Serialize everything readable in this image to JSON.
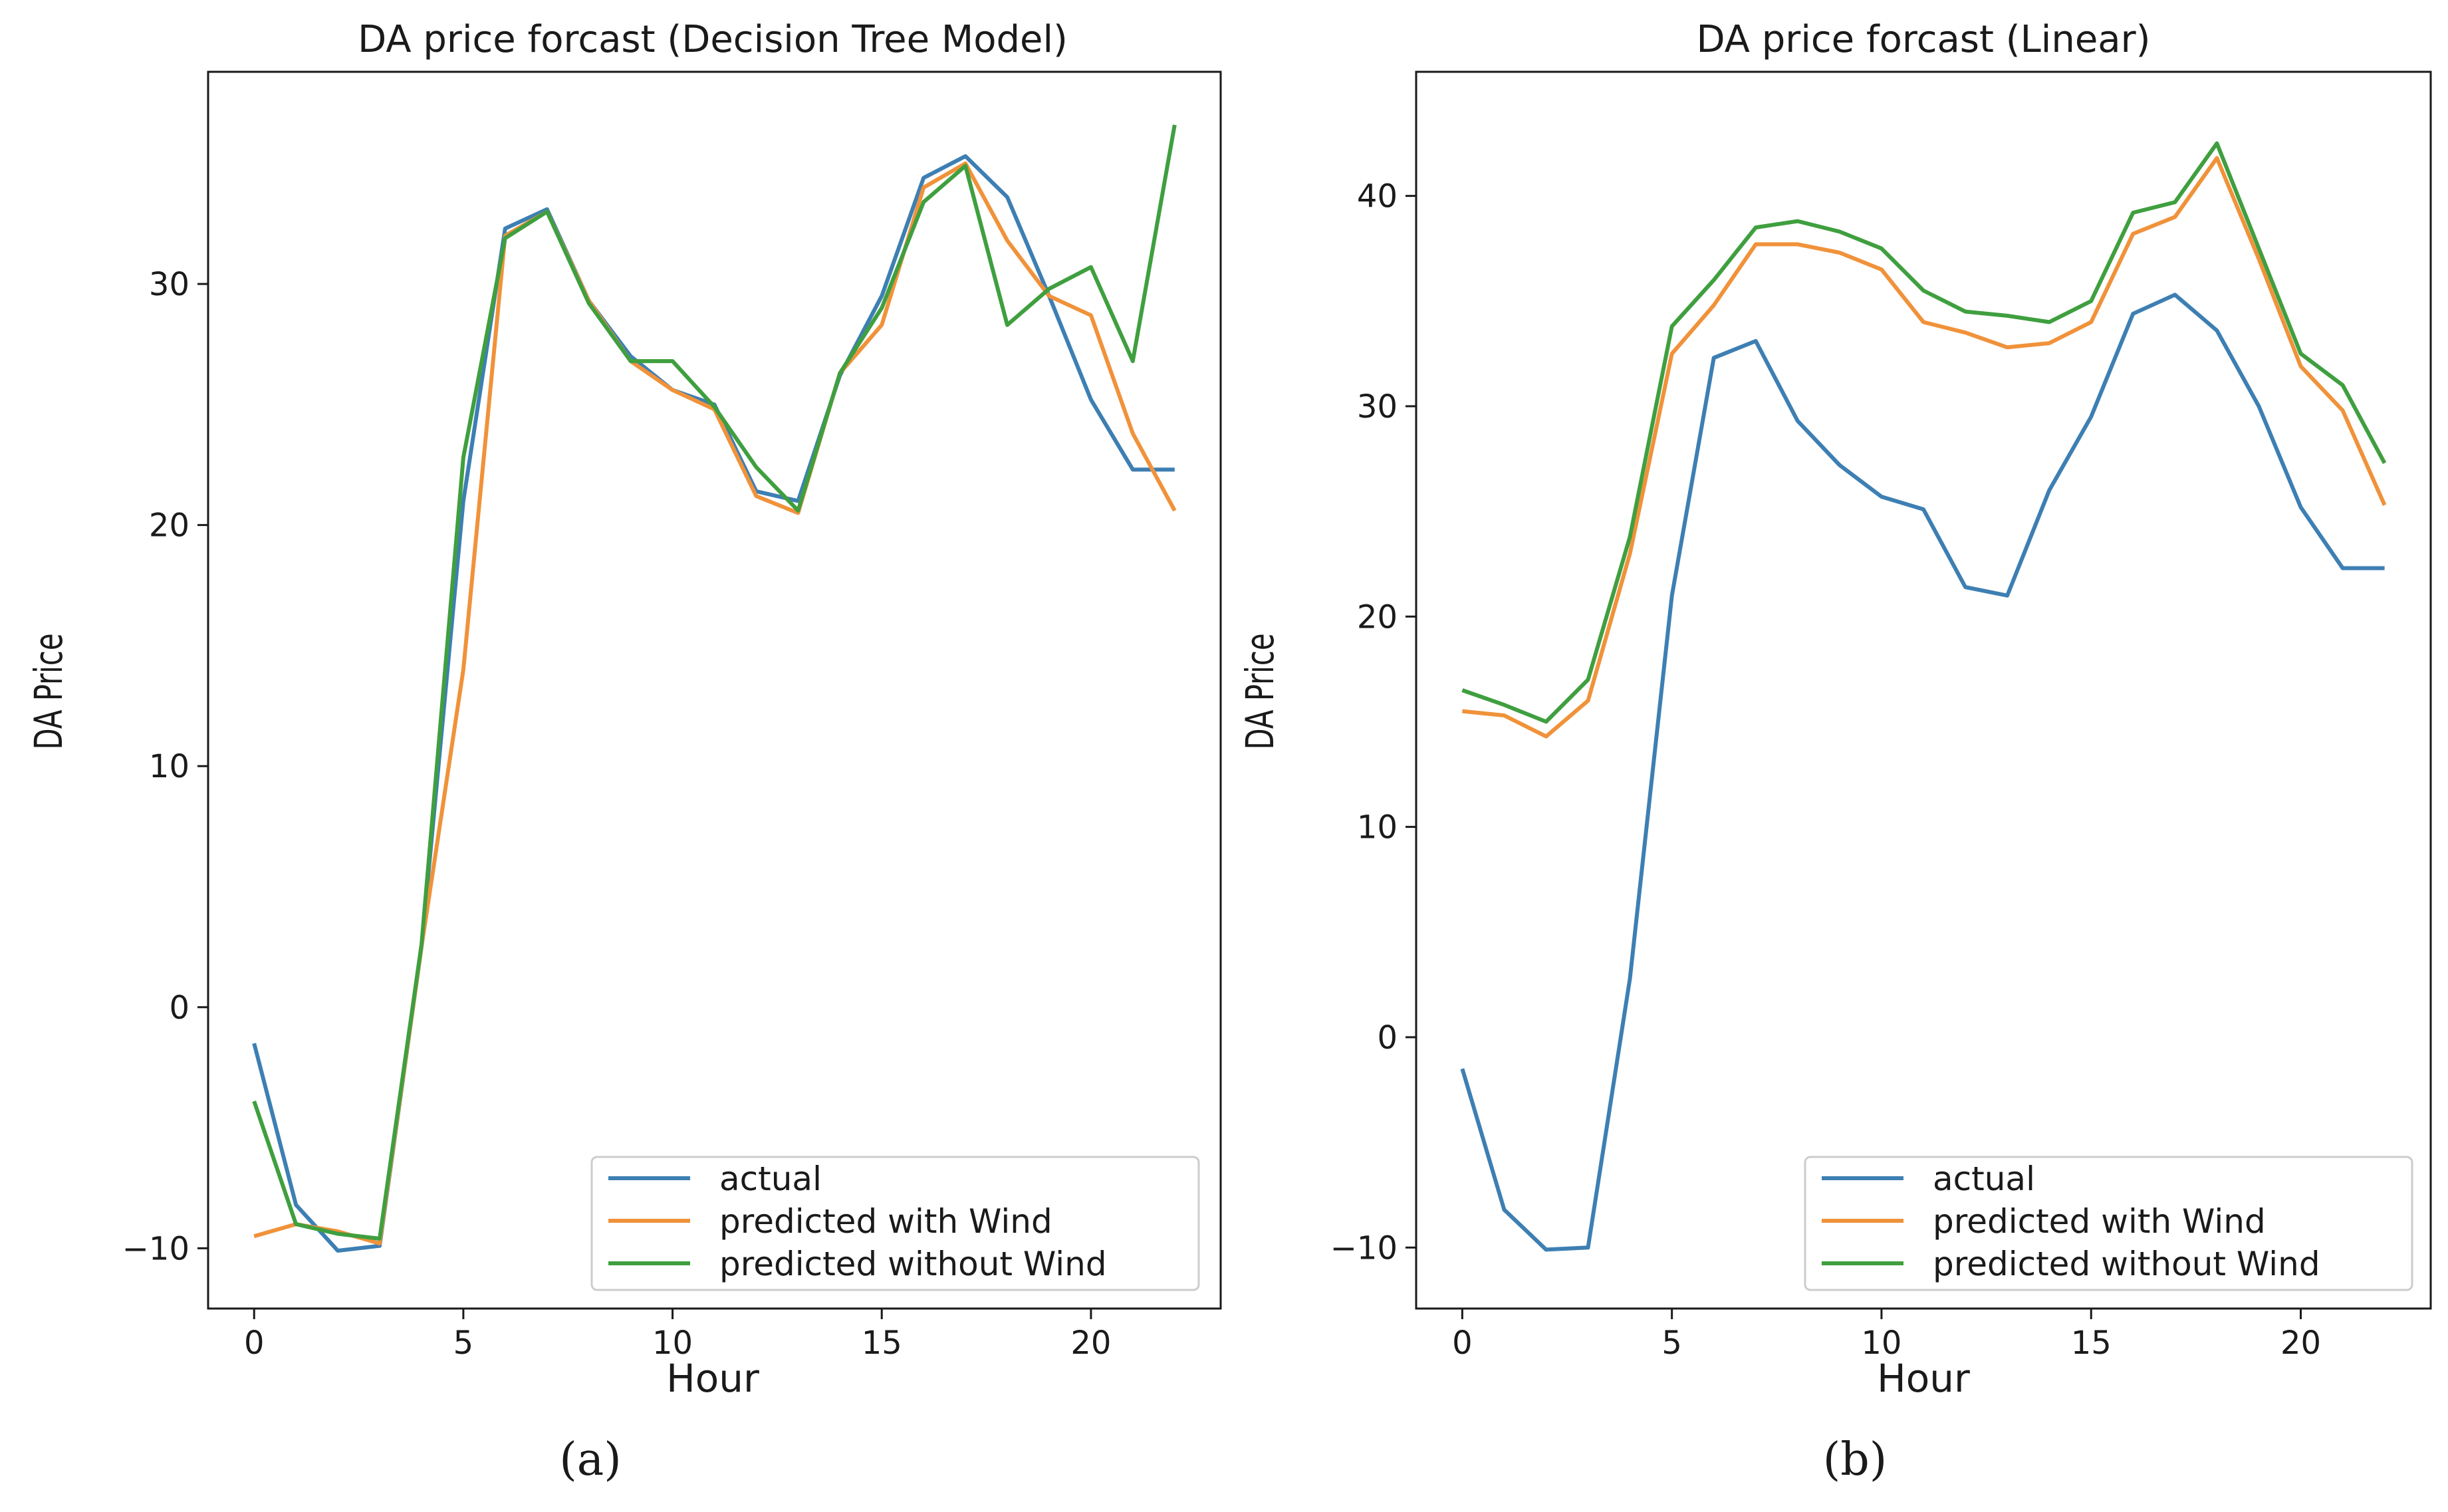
{
  "chart_data": [
    {
      "type": "line",
      "title": "DA price forcast (Decision Tree Model)",
      "xlabel": "Hour",
      "ylabel": "DA Price",
      "xlim": [
        -1.1,
        23.1
      ],
      "ylim": [
        -12.5,
        38.8
      ],
      "xticks": [
        0,
        5,
        10,
        15,
        20
      ],
      "yticks": [
        -10,
        0,
        10,
        20,
        30
      ],
      "legend_position": "lower right",
      "caption": "(a)",
      "x": [
        0,
        1,
        2,
        3,
        4,
        5,
        6,
        7,
        8,
        9,
        10,
        11,
        12,
        13,
        14,
        15,
        16,
        17,
        18,
        19,
        20,
        21,
        22
      ],
      "series": [
        {
          "name": "actual",
          "color": "#3d7fb3",
          "values": [
            -1.5,
            -8.2,
            -10.1,
            -9.9,
            2.5,
            21.0,
            32.3,
            33.1,
            29.3,
            27.0,
            25.6,
            25.0,
            21.4,
            21.0,
            26.2,
            29.5,
            34.4,
            35.3,
            33.6,
            29.5,
            25.2,
            22.3,
            22.3
          ]
        },
        {
          "name": "predicted with Wind",
          "color": "#f0923a",
          "values": [
            -9.5,
            -9.0,
            -9.3,
            -9.8,
            2.5,
            14.0,
            32.0,
            33.0,
            29.3,
            26.8,
            25.6,
            24.8,
            21.2,
            20.5,
            26.3,
            28.3,
            34.0,
            35.0,
            31.8,
            29.5,
            28.7,
            23.8,
            20.6
          ]
        },
        {
          "name": "predicted without Wind",
          "color": "#3f9f3f",
          "values": [
            -3.9,
            -9.0,
            -9.4,
            -9.6,
            2.6,
            22.8,
            31.9,
            33.0,
            29.2,
            26.8,
            26.8,
            24.9,
            22.4,
            20.6,
            26.3,
            29.0,
            33.4,
            34.9,
            28.3,
            29.8,
            30.7,
            26.8,
            36.6
          ]
        }
      ]
    },
    {
      "type": "line",
      "title": "DA price forcast (Linear)",
      "xlabel": "Hour",
      "ylabel": "DA Price",
      "xlim": [
        -1.1,
        23.1
      ],
      "ylim": [
        -12.9,
        45.9
      ],
      "xticks": [
        0,
        5,
        10,
        15,
        20
      ],
      "yticks": [
        -10,
        0,
        10,
        20,
        30,
        40
      ],
      "legend_position": "lower right",
      "caption": "(b)",
      "x": [
        0,
        1,
        2,
        3,
        4,
        5,
        6,
        7,
        8,
        9,
        10,
        11,
        12,
        13,
        14,
        15,
        16,
        17,
        18,
        19,
        20,
        21,
        22
      ],
      "series": [
        {
          "name": "actual",
          "color": "#3d7fb3",
          "values": [
            -1.5,
            -8.2,
            -10.1,
            -10.0,
            2.8,
            21.0,
            32.3,
            33.1,
            29.3,
            27.2,
            25.7,
            25.1,
            21.4,
            21.0,
            26.0,
            29.5,
            34.4,
            35.3,
            33.6,
            30.0,
            25.2,
            22.3,
            22.3
          ]
        },
        {
          "name": "predicted with Wind",
          "color": "#f0923a",
          "values": [
            15.5,
            15.3,
            14.3,
            16.0,
            23.0,
            32.5,
            34.8,
            37.7,
            37.7,
            37.3,
            36.5,
            34.0,
            33.5,
            32.8,
            33.0,
            34.0,
            38.2,
            39.0,
            41.8,
            37.0,
            31.9,
            29.8,
            25.3
          ]
        },
        {
          "name": "predicted without Wind",
          "color": "#3f9f3f",
          "values": [
            16.5,
            15.8,
            15.0,
            17.0,
            23.8,
            33.8,
            36.0,
            38.5,
            38.8,
            38.3,
            37.5,
            35.5,
            34.5,
            34.3,
            34.0,
            35.0,
            39.2,
            39.7,
            42.5,
            37.5,
            32.5,
            31.0,
            27.3
          ]
        }
      ]
    }
  ]
}
